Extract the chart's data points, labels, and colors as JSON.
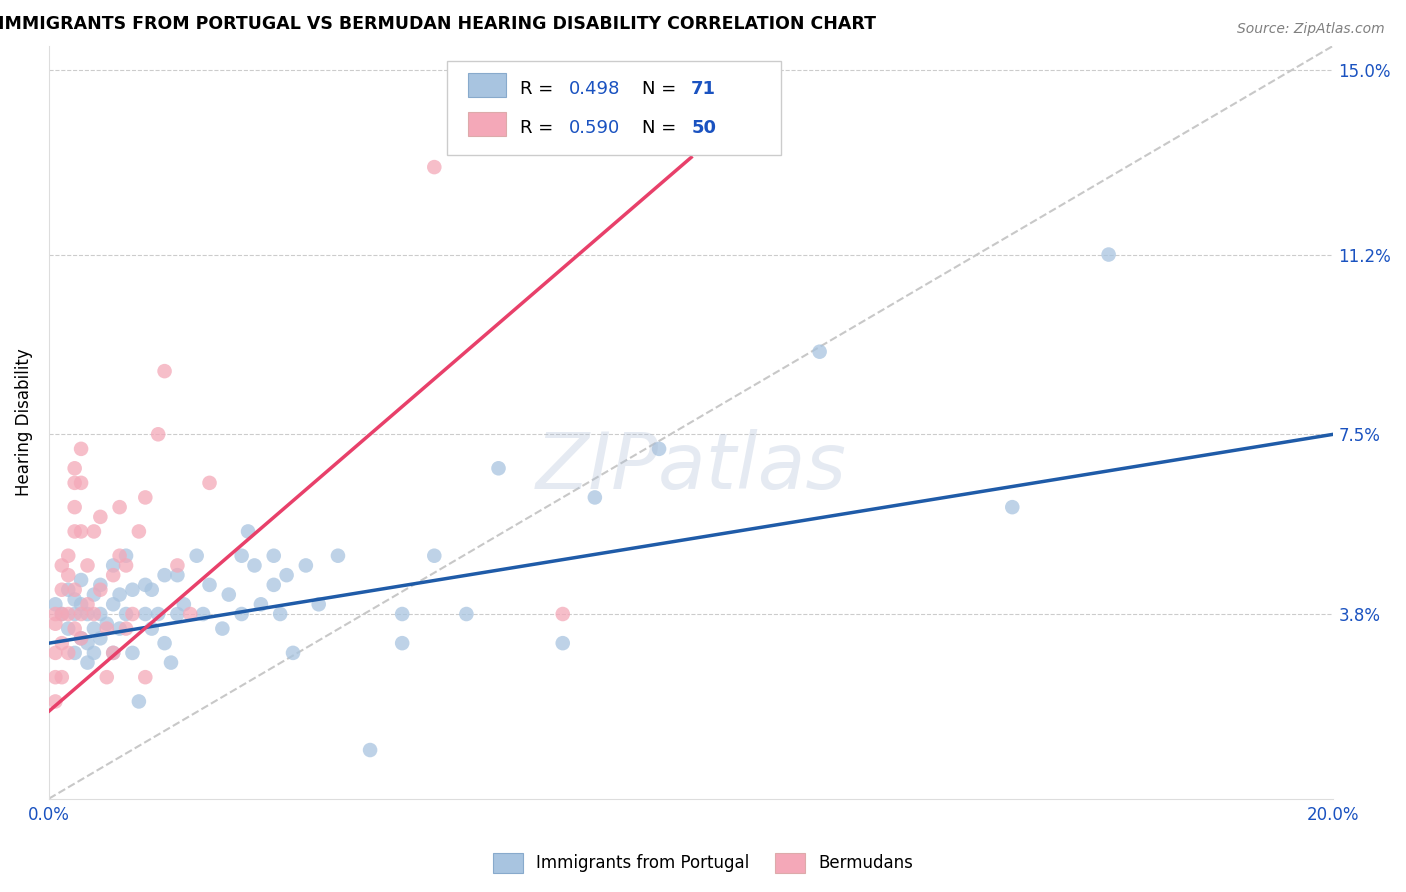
{
  "title": "IMMIGRANTS FROM PORTUGAL VS BERMUDAN HEARING DISABILITY CORRELATION CHART",
  "source": "Source: ZipAtlas.com",
  "ylabel": "Hearing Disability",
  "x_min": 0.0,
  "x_max": 0.2,
  "y_min": 0.0,
  "y_max": 0.155,
  "x_ticks": [
    0.0,
    0.05,
    0.1,
    0.15,
    0.2
  ],
  "x_tick_labels": [
    "0.0%",
    "",
    "",
    "",
    "20.0%"
  ],
  "y_ticks": [
    0.038,
    0.075,
    0.112,
    0.15
  ],
  "y_tick_labels": [
    "3.8%",
    "7.5%",
    "11.2%",
    "15.0%"
  ],
  "blue_R": "0.498",
  "blue_N": "71",
  "pink_R": "0.590",
  "pink_N": "50",
  "blue_color": "#A8C4E0",
  "pink_color": "#F4A8B8",
  "blue_line_color": "#1F5BA8",
  "pink_line_color": "#E8406A",
  "diagonal_color": "#C8C8C8",
  "grid_color": "#CCCCCC",
  "legend_text_color": "#1A52C0",
  "blue_scatter": [
    [
      0.001,
      0.04
    ],
    [
      0.002,
      0.038
    ],
    [
      0.003,
      0.035
    ],
    [
      0.003,
      0.043
    ],
    [
      0.004,
      0.03
    ],
    [
      0.004,
      0.038
    ],
    [
      0.004,
      0.041
    ],
    [
      0.005,
      0.033
    ],
    [
      0.005,
      0.04
    ],
    [
      0.005,
      0.045
    ],
    [
      0.006,
      0.028
    ],
    [
      0.006,
      0.032
    ],
    [
      0.006,
      0.038
    ],
    [
      0.007,
      0.03
    ],
    [
      0.007,
      0.035
    ],
    [
      0.007,
      0.042
    ],
    [
      0.008,
      0.033
    ],
    [
      0.008,
      0.038
    ],
    [
      0.008,
      0.044
    ],
    [
      0.009,
      0.036
    ],
    [
      0.01,
      0.03
    ],
    [
      0.01,
      0.04
    ],
    [
      0.01,
      0.048
    ],
    [
      0.011,
      0.035
    ],
    [
      0.011,
      0.042
    ],
    [
      0.012,
      0.038
    ],
    [
      0.012,
      0.05
    ],
    [
      0.013,
      0.03
    ],
    [
      0.013,
      0.043
    ],
    [
      0.014,
      0.02
    ],
    [
      0.015,
      0.038
    ],
    [
      0.015,
      0.044
    ],
    [
      0.016,
      0.035
    ],
    [
      0.016,
      0.043
    ],
    [
      0.017,
      0.038
    ],
    [
      0.018,
      0.032
    ],
    [
      0.018,
      0.046
    ],
    [
      0.019,
      0.028
    ],
    [
      0.02,
      0.038
    ],
    [
      0.02,
      0.046
    ],
    [
      0.021,
      0.04
    ],
    [
      0.023,
      0.05
    ],
    [
      0.024,
      0.038
    ],
    [
      0.025,
      0.044
    ],
    [
      0.027,
      0.035
    ],
    [
      0.028,
      0.042
    ],
    [
      0.03,
      0.038
    ],
    [
      0.03,
      0.05
    ],
    [
      0.031,
      0.055
    ],
    [
      0.032,
      0.048
    ],
    [
      0.033,
      0.04
    ],
    [
      0.035,
      0.044
    ],
    [
      0.035,
      0.05
    ],
    [
      0.036,
      0.038
    ],
    [
      0.037,
      0.046
    ],
    [
      0.038,
      0.03
    ],
    [
      0.04,
      0.048
    ],
    [
      0.042,
      0.04
    ],
    [
      0.045,
      0.05
    ],
    [
      0.05,
      0.01
    ],
    [
      0.055,
      0.032
    ],
    [
      0.055,
      0.038
    ],
    [
      0.06,
      0.05
    ],
    [
      0.065,
      0.038
    ],
    [
      0.07,
      0.068
    ],
    [
      0.08,
      0.032
    ],
    [
      0.085,
      0.062
    ],
    [
      0.095,
      0.072
    ],
    [
      0.12,
      0.092
    ],
    [
      0.15,
      0.06
    ],
    [
      0.165,
      0.112
    ]
  ],
  "pink_scatter": [
    [
      0.001,
      0.02
    ],
    [
      0.001,
      0.025
    ],
    [
      0.001,
      0.03
    ],
    [
      0.001,
      0.036
    ],
    [
      0.001,
      0.038
    ],
    [
      0.002,
      0.025
    ],
    [
      0.002,
      0.032
    ],
    [
      0.002,
      0.038
    ],
    [
      0.002,
      0.043
    ],
    [
      0.002,
      0.048
    ],
    [
      0.003,
      0.03
    ],
    [
      0.003,
      0.038
    ],
    [
      0.003,
      0.046
    ],
    [
      0.003,
      0.05
    ],
    [
      0.004,
      0.035
    ],
    [
      0.004,
      0.043
    ],
    [
      0.004,
      0.055
    ],
    [
      0.004,
      0.06
    ],
    [
      0.004,
      0.065
    ],
    [
      0.004,
      0.068
    ],
    [
      0.005,
      0.033
    ],
    [
      0.005,
      0.038
    ],
    [
      0.005,
      0.055
    ],
    [
      0.005,
      0.065
    ],
    [
      0.005,
      0.072
    ],
    [
      0.006,
      0.04
    ],
    [
      0.006,
      0.048
    ],
    [
      0.007,
      0.038
    ],
    [
      0.007,
      0.055
    ],
    [
      0.008,
      0.043
    ],
    [
      0.008,
      0.058
    ],
    [
      0.009,
      0.025
    ],
    [
      0.009,
      0.035
    ],
    [
      0.01,
      0.03
    ],
    [
      0.01,
      0.046
    ],
    [
      0.011,
      0.05
    ],
    [
      0.011,
      0.06
    ],
    [
      0.012,
      0.035
    ],
    [
      0.012,
      0.048
    ],
    [
      0.013,
      0.038
    ],
    [
      0.014,
      0.055
    ],
    [
      0.015,
      0.025
    ],
    [
      0.015,
      0.062
    ],
    [
      0.017,
      0.075
    ],
    [
      0.018,
      0.088
    ],
    [
      0.02,
      0.048
    ],
    [
      0.022,
      0.038
    ],
    [
      0.025,
      0.065
    ],
    [
      0.06,
      0.13
    ],
    [
      0.08,
      0.038
    ]
  ],
  "blue_line_x": [
    0.0,
    0.2
  ],
  "blue_line_y": [
    0.032,
    0.075
  ],
  "pink_line_x": [
    0.0,
    0.1
  ],
  "pink_line_y": [
    0.018,
    0.132
  ]
}
